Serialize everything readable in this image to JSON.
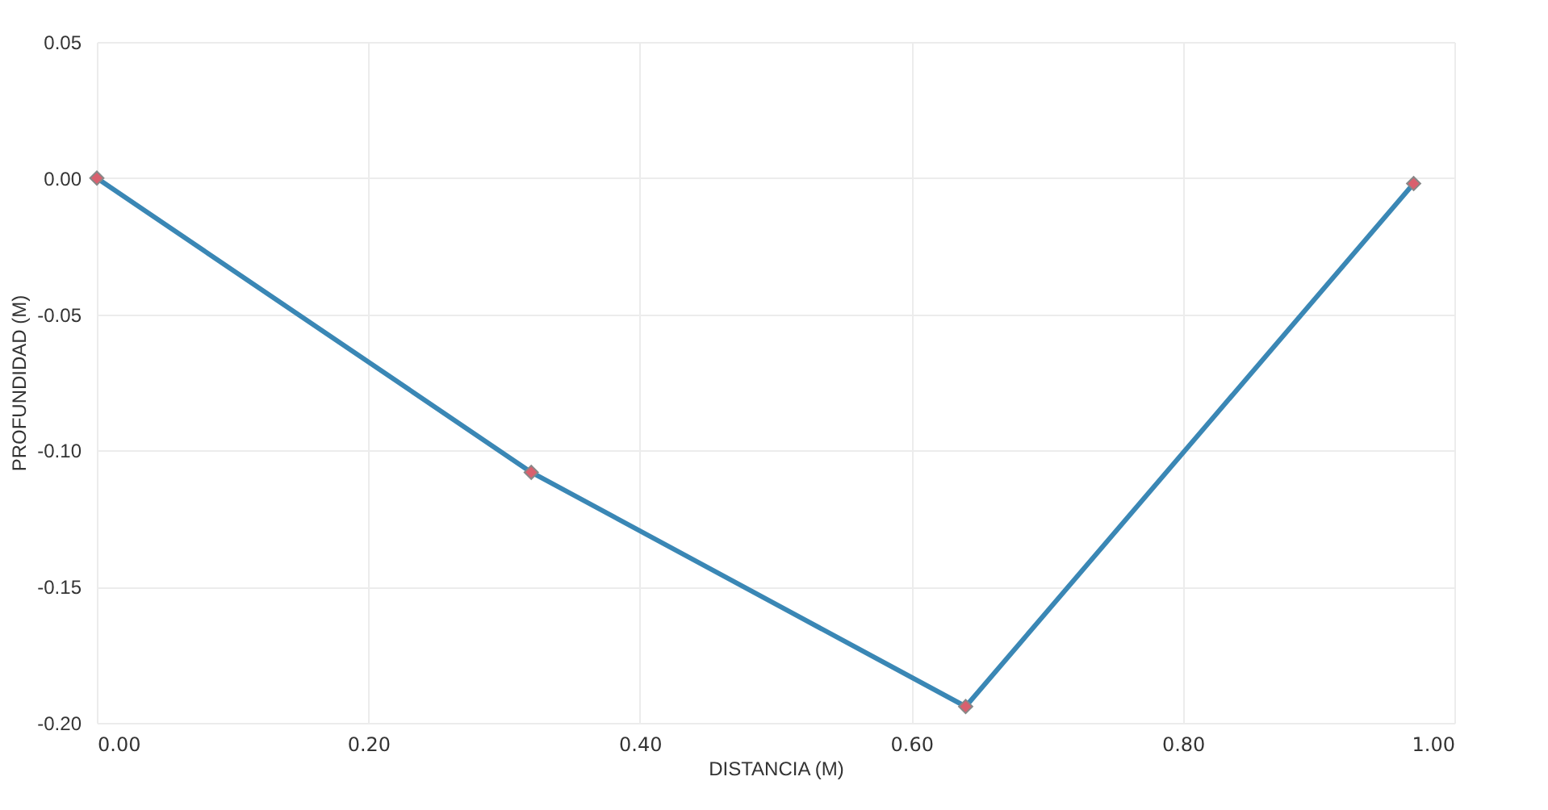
{
  "chart_data": {
    "type": "line",
    "xlabel": "DISTANCIA (M)",
    "ylabel": "PROFUNDIDAD (M)",
    "x": [
      0.0,
      0.32,
      0.64,
      0.97
    ],
    "series": [
      {
        "color": "#3a87b5",
        "values": [
          0.0,
          -0.108,
          -0.194,
          -0.002
        ]
      }
    ],
    "xlim": [
      0,
      1
    ],
    "xticks": [
      {
        "value": 0,
        "label": "0.00"
      },
      {
        "value": 0.2,
        "label": "0.20"
      },
      {
        "value": 0.4,
        "label": "0.40"
      },
      {
        "value": 0.6,
        "label": "0.60"
      },
      {
        "value": 0.8,
        "label": "0.80"
      },
      {
        "value": 1,
        "label": "1.00"
      }
    ],
    "ylim": [
      -0.2,
      0.05
    ],
    "yticks": [
      {
        "value": -0.2,
        "label": "-0.20"
      },
      {
        "value": -0.15,
        "label": "-0.15"
      },
      {
        "value": -0.1,
        "label": "-0.10"
      },
      {
        "value": -0.05,
        "label": "-0.05"
      },
      {
        "value": 0,
        "label": "0.00"
      },
      {
        "value": 0.05,
        "label": "0.05"
      }
    ],
    "grid": true,
    "marker": "diamond",
    "line_style": "solid"
  }
}
